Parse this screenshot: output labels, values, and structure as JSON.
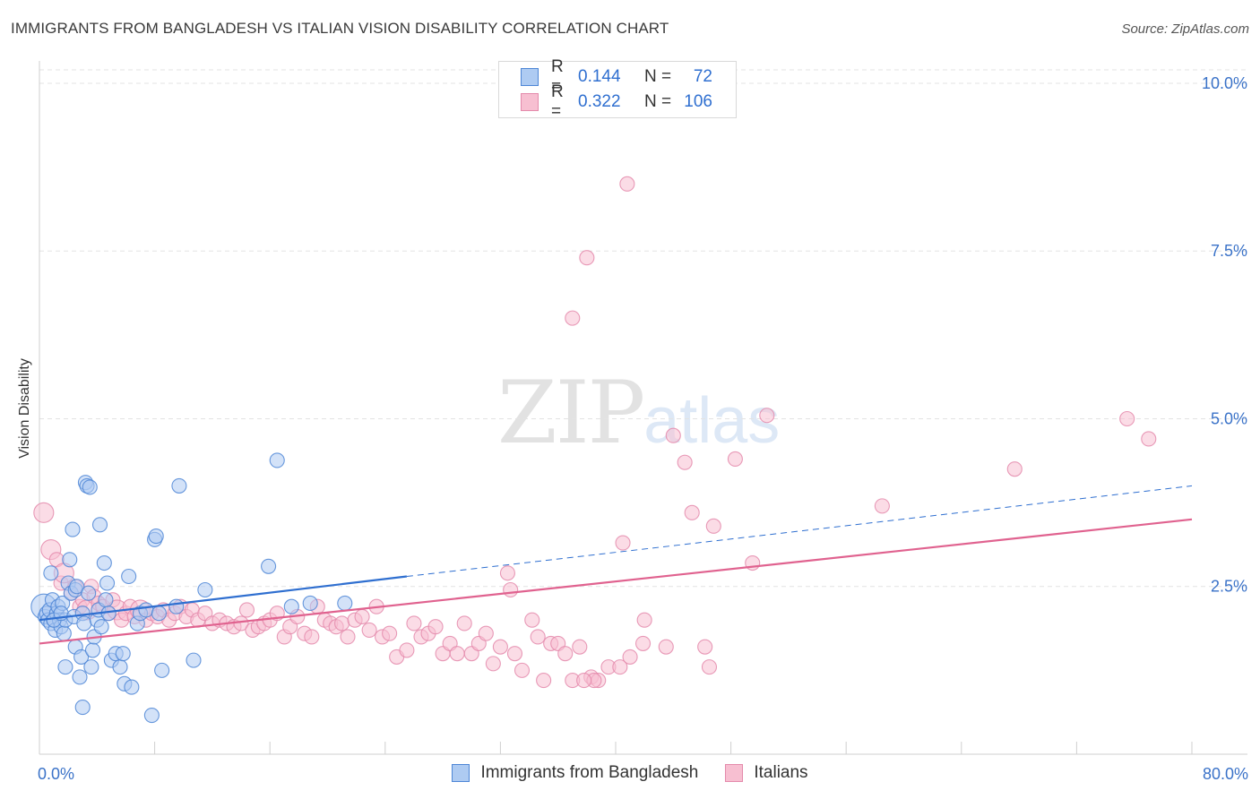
{
  "header": {
    "title": "IMMIGRANTS FROM BANGLADESH VS ITALIAN VISION DISABILITY CORRELATION CHART",
    "source": "Source: ZipAtlas.com"
  },
  "watermark": {
    "zip": "ZIP",
    "atlas": "atlas"
  },
  "legend": {
    "rows": [
      {
        "r_label": "R =",
        "r_value": "0.144",
        "n_label": "N =",
        "n_value": "72"
      },
      {
        "r_label": "R =",
        "r_value": "0.322",
        "n_label": "N =",
        "n_value": "106"
      }
    ]
  },
  "colors": {
    "blue_fill": "#aecbf2",
    "blue_stroke": "#4d86d6",
    "blue_line": "#2f6fd0",
    "pink_fill": "#f7bfd1",
    "pink_stroke": "#e48aab",
    "pink_line": "#e0628f",
    "tick_label": "#3a72c8",
    "grid": "#e3e3e3"
  },
  "chart_data": {
    "type": "scatter",
    "title": "IMMIGRANTS FROM BANGLADESH VS ITALIAN VISION DISABILITY CORRELATION CHART",
    "xlabel": "",
    "ylabel": "Vision Disability",
    "xlim": [
      0,
      80
    ],
    "ylim": [
      0,
      10.2
    ],
    "x_tick_labels": [
      "0.0%",
      "80.0%"
    ],
    "y_ticks": [
      2.5,
      5.0,
      7.5,
      10.0
    ],
    "y_tick_labels": [
      "2.5%",
      "5.0%",
      "7.5%",
      "10.0%"
    ],
    "grid": true,
    "legend_position": "bottom",
    "series": [
      {
        "name": "Immigrants from Bangladesh",
        "R": 0.144,
        "N": 72,
        "trend": {
          "x0": 0,
          "y0": 2.0,
          "x_solid_end": 25.5,
          "y_solid_end": 2.65,
          "x1": 80,
          "y1": 4.0
        },
        "points": [
          [
            0.3,
            2.2,
            3
          ],
          [
            0.4,
            2.05,
            1
          ],
          [
            0.5,
            2.1,
            1
          ],
          [
            0.6,
            2.0,
            1
          ],
          [
            0.7,
            2.15,
            1
          ],
          [
            0.8,
            1.95,
            1
          ],
          [
            0.9,
            2.3,
            1
          ],
          [
            1.0,
            2.0,
            1
          ],
          [
            1.1,
            1.85,
            1
          ],
          [
            1.2,
            2.1,
            1
          ],
          [
            1.3,
            2.2,
            1
          ],
          [
            1.4,
            2.0,
            1
          ],
          [
            1.5,
            1.9,
            1
          ],
          [
            1.6,
            2.25,
            1
          ],
          [
            1.7,
            1.8,
            1
          ],
          [
            1.8,
            2.0,
            1
          ],
          [
            0.8,
            2.7,
            1
          ],
          [
            1.0,
            2.0,
            1
          ],
          [
            1.5,
            2.1,
            1
          ],
          [
            1.8,
            1.3,
            1
          ],
          [
            2.0,
            2.55,
            1
          ],
          [
            2.1,
            2.9,
            1
          ],
          [
            2.2,
            2.4,
            1
          ],
          [
            2.3,
            3.35,
            1
          ],
          [
            2.4,
            2.05,
            1
          ],
          [
            2.5,
            2.45,
            1
          ],
          [
            2.5,
            1.6,
            1
          ],
          [
            2.6,
            2.5,
            1
          ],
          [
            2.8,
            1.15,
            1
          ],
          [
            2.9,
            1.45,
            1
          ],
          [
            3.0,
            0.7,
            1
          ],
          [
            3.0,
            2.1,
            1
          ],
          [
            3.1,
            1.95,
            1
          ],
          [
            3.2,
            4.05,
            1
          ],
          [
            3.3,
            4.0,
            1
          ],
          [
            3.4,
            2.4,
            1
          ],
          [
            3.5,
            3.98,
            1
          ],
          [
            3.6,
            1.3,
            1
          ],
          [
            3.7,
            1.55,
            1
          ],
          [
            3.8,
            1.75,
            1
          ],
          [
            4.0,
            2.0,
            1
          ],
          [
            4.1,
            2.15,
            1
          ],
          [
            4.2,
            3.42,
            1
          ],
          [
            4.3,
            1.9,
            1
          ],
          [
            4.5,
            2.85,
            1
          ],
          [
            4.6,
            2.3,
            1
          ],
          [
            4.7,
            2.55,
            1
          ],
          [
            4.8,
            2.1,
            1
          ],
          [
            5.0,
            1.4,
            1
          ],
          [
            5.3,
            1.5,
            1
          ],
          [
            5.6,
            1.3,
            1
          ],
          [
            5.8,
            1.5,
            1
          ],
          [
            5.9,
            1.05,
            1
          ],
          [
            6.2,
            2.65,
            1
          ],
          [
            6.4,
            1.0,
            1
          ],
          [
            6.8,
            1.95,
            1
          ],
          [
            7.0,
            2.1,
            1
          ],
          [
            7.4,
            2.15,
            1
          ],
          [
            7.8,
            0.58,
            1
          ],
          [
            8.0,
            3.2,
            1
          ],
          [
            8.1,
            3.25,
            1
          ],
          [
            8.3,
            2.1,
            1
          ],
          [
            8.5,
            1.25,
            1
          ],
          [
            9.5,
            2.2,
            1
          ],
          [
            9.7,
            4.0,
            1
          ],
          [
            10.7,
            1.4,
            1
          ],
          [
            11.5,
            2.45,
            1
          ],
          [
            15.9,
            2.8,
            1
          ],
          [
            16.5,
            4.38,
            1
          ],
          [
            17.5,
            2.2,
            1
          ],
          [
            18.8,
            2.25,
            1
          ],
          [
            21.2,
            2.25,
            1
          ]
        ]
      },
      {
        "name": "Italians",
        "R": 0.322,
        "N": 106,
        "trend": {
          "x0": 0,
          "y0": 1.65,
          "x1": 80,
          "y1": 3.5
        },
        "points": [
          [
            0.3,
            3.6,
            2
          ],
          [
            0.8,
            3.05,
            2
          ],
          [
            1.2,
            2.9,
            1
          ],
          [
            1.5,
            2.55,
            1
          ],
          [
            1.7,
            2.7,
            2
          ],
          [
            2.2,
            2.4,
            1
          ],
          [
            2.5,
            2.5,
            1
          ],
          [
            2.8,
            2.2,
            1
          ],
          [
            3.0,
            2.3,
            1
          ],
          [
            3.3,
            2.15,
            2
          ],
          [
            3.6,
            2.5,
            1
          ],
          [
            3.8,
            2.35,
            1
          ],
          [
            4.1,
            2.25,
            1
          ],
          [
            4.4,
            2.2,
            1
          ],
          [
            4.8,
            2.1,
            1
          ],
          [
            5.1,
            2.3,
            1
          ],
          [
            5.4,
            2.15,
            2
          ],
          [
            5.7,
            2.0,
            1
          ],
          [
            6.0,
            2.1,
            1
          ],
          [
            6.3,
            2.2,
            1
          ],
          [
            6.6,
            2.05,
            1
          ],
          [
            7.0,
            2.15,
            2
          ],
          [
            7.4,
            2.0,
            1
          ],
          [
            7.8,
            2.1,
            1
          ],
          [
            8.2,
            2.05,
            1
          ],
          [
            8.6,
            2.15,
            1
          ],
          [
            9.0,
            2.0,
            1
          ],
          [
            9.4,
            2.1,
            1
          ],
          [
            9.8,
            2.2,
            1
          ],
          [
            10.2,
            2.05,
            1
          ],
          [
            10.6,
            2.15,
            1
          ],
          [
            11.0,
            2.0,
            1
          ],
          [
            11.5,
            2.1,
            1
          ],
          [
            12.0,
            1.95,
            1
          ],
          [
            12.5,
            2.0,
            1
          ],
          [
            13.0,
            1.95,
            1
          ],
          [
            13.5,
            1.9,
            1
          ],
          [
            14.0,
            1.95,
            1
          ],
          [
            14.4,
            2.15,
            1
          ],
          [
            14.8,
            1.85,
            1
          ],
          [
            15.2,
            1.9,
            1
          ],
          [
            15.6,
            1.95,
            1
          ],
          [
            16.0,
            2.0,
            1
          ],
          [
            16.5,
            2.1,
            1
          ],
          [
            17.0,
            1.75,
            1
          ],
          [
            17.4,
            1.9,
            1
          ],
          [
            17.9,
            2.05,
            1
          ],
          [
            18.4,
            1.8,
            1
          ],
          [
            18.9,
            1.75,
            1
          ],
          [
            19.3,
            2.2,
            1
          ],
          [
            19.8,
            2.0,
            1
          ],
          [
            20.2,
            1.95,
            1
          ],
          [
            20.6,
            1.9,
            1
          ],
          [
            21.0,
            1.95,
            1
          ],
          [
            21.4,
            1.75,
            1
          ],
          [
            21.9,
            2.0,
            1
          ],
          [
            22.4,
            2.05,
            1
          ],
          [
            22.9,
            1.85,
            1
          ],
          [
            23.4,
            2.2,
            1
          ],
          [
            23.8,
            1.75,
            1
          ],
          [
            24.3,
            1.8,
            1
          ],
          [
            24.8,
            1.45,
            1
          ],
          [
            25.5,
            1.55,
            1
          ],
          [
            26.0,
            1.95,
            1
          ],
          [
            26.5,
            1.75,
            1
          ],
          [
            27.0,
            1.8,
            1
          ],
          [
            27.5,
            1.9,
            1
          ],
          [
            28.0,
            1.5,
            1
          ],
          [
            28.5,
            1.65,
            1
          ],
          [
            29.0,
            1.5,
            1
          ],
          [
            29.5,
            1.95,
            1
          ],
          [
            30.0,
            1.5,
            1
          ],
          [
            30.5,
            1.65,
            1
          ],
          [
            31.0,
            1.8,
            1
          ],
          [
            31.5,
            1.35,
            1
          ],
          [
            32.0,
            1.6,
            1
          ],
          [
            32.5,
            2.7,
            1
          ],
          [
            32.7,
            2.45,
            1
          ],
          [
            33.0,
            1.5,
            1
          ],
          [
            33.5,
            1.25,
            1
          ],
          [
            34.2,
            2.0,
            1
          ],
          [
            34.6,
            1.75,
            1
          ],
          [
            35.0,
            1.1,
            1
          ],
          [
            35.5,
            1.65,
            1
          ],
          [
            36.0,
            1.65,
            1
          ],
          [
            36.5,
            1.5,
            1
          ],
          [
            37.0,
            1.1,
            1
          ],
          [
            37.5,
            1.6,
            1
          ],
          [
            38.3,
            1.15,
            1
          ],
          [
            38.8,
            1.1,
            1
          ],
          [
            39.5,
            1.3,
            1
          ],
          [
            40.3,
            1.3,
            1
          ],
          [
            40.5,
            3.15,
            1
          ],
          [
            41.0,
            1.45,
            1
          ],
          [
            40.8,
            8.5,
            1
          ],
          [
            41.9,
            1.65,
            1
          ],
          [
            42.0,
            2.0,
            1
          ],
          [
            43.5,
            1.6,
            1
          ],
          [
            44.0,
            4.75,
            1
          ],
          [
            44.8,
            4.35,
            1
          ],
          [
            45.3,
            3.6,
            1
          ],
          [
            46.2,
            1.6,
            1
          ],
          [
            46.5,
            1.3,
            1
          ],
          [
            46.8,
            3.4,
            1
          ],
          [
            48.3,
            4.4,
            1
          ],
          [
            49.5,
            2.85,
            1
          ],
          [
            50.5,
            5.05,
            1
          ],
          [
            58.5,
            3.7,
            1
          ],
          [
            67.7,
            4.25,
            1
          ],
          [
            75.5,
            5.0,
            1
          ],
          [
            77.0,
            4.7,
            1
          ],
          [
            38.5,
            1.1,
            1
          ],
          [
            37.8,
            1.1,
            1
          ],
          [
            37.0,
            6.5,
            1
          ],
          [
            38.0,
            7.4,
            1
          ]
        ]
      }
    ]
  },
  "bottom_legend": [
    {
      "label": "Immigrants from Bangladesh"
    },
    {
      "label": "Italians"
    }
  ]
}
